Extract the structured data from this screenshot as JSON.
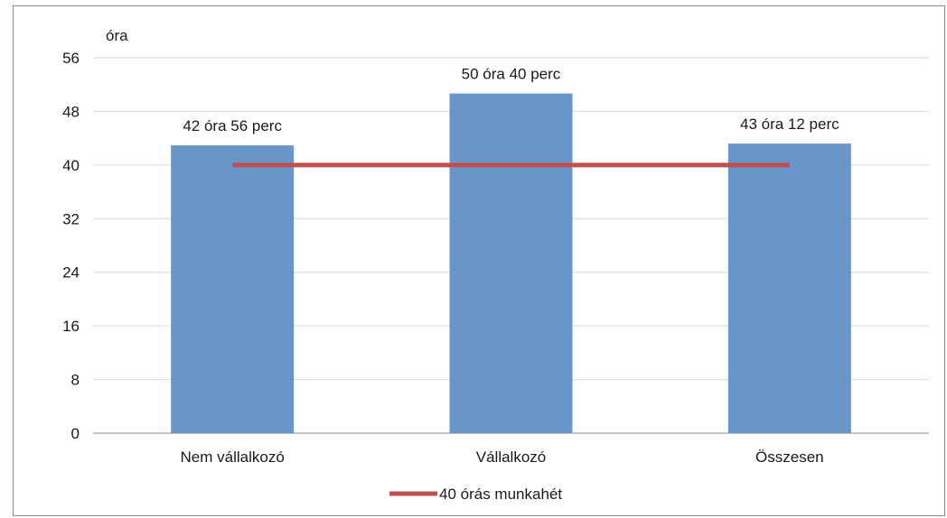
{
  "chart_data": {
    "type": "bar",
    "categories": [
      "Nem vállalkozó",
      "Vállalkozó",
      "Összesen"
    ],
    "series": [
      {
        "values": [
          42.93,
          50.67,
          43.2
        ],
        "color": "#6996c8"
      },
      {
        "name": "40 órás munkahét",
        "type": "line",
        "values": [
          40,
          40,
          40
        ],
        "color": "#c0504d"
      }
    ],
    "data_labels": [
      "42 óra 56 perc",
      "50 óra 40 perc",
      "43 óra 12 perc"
    ],
    "ylabel": "óra",
    "ylim": [
      0,
      56
    ],
    "yticks": [
      0,
      8,
      16,
      24,
      32,
      40,
      48,
      56
    ],
    "grid": true,
    "legend_position": "bottom"
  }
}
